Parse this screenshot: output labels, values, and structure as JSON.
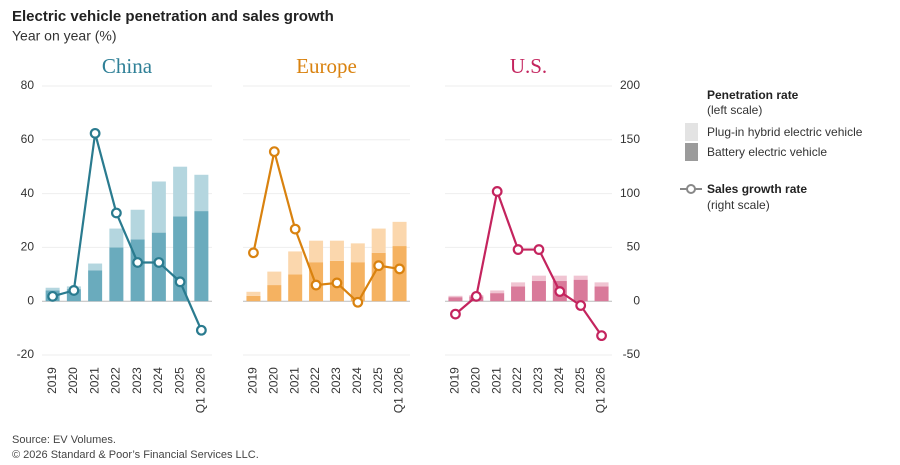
{
  "title": "Electric vehicle penetration and sales growth",
  "subtitle": "Year on year (%)",
  "legend": {
    "bar_title": "Penetration rate",
    "bar_note": "(left scale)",
    "line_note": "(right scale)"
  },
  "source": "Source: EV Volumes.",
  "copyright": "© 2026 Standard & Poor’s Financial Services LLC.",
  "chart_data": [
    {
      "type": "stacked-bar-line",
      "title": "China",
      "color": "#2f8097",
      "categories": [
        "2019",
        "2020",
        "2021",
        "2022",
        "2023",
        "2024",
        "2025",
        "Q1 2026"
      ],
      "ylim": [
        -20,
        80
      ],
      "yticks": [
        -20,
        0,
        20,
        40,
        60,
        80
      ],
      "y2lim": [
        -50,
        200
      ],
      "grid": true,
      "series": [
        {
          "name": "Plug-in hybrid electric vehicle",
          "color": "#b4d6df",
          "values": [
            1,
            1,
            2.5,
            7,
            11,
            19,
            18.5,
            13.5
          ]
        },
        {
          "name": "Battery electric vehicle",
          "color": "#6aabbd",
          "values": [
            4,
            4.5,
            11.5,
            20,
            23,
            25.5,
            31.5,
            33.5
          ]
        },
        {
          "name": "Sales growth rate",
          "color": "#2a7b8f",
          "axis": "y2",
          "values": [
            4.5,
            10,
            156,
            82,
            36,
            36,
            18,
            -27
          ]
        }
      ]
    },
    {
      "type": "stacked-bar-line",
      "title": "Europe",
      "color": "#d9820f",
      "categories": [
        "2019",
        "2020",
        "2021",
        "2022",
        "2023",
        "2024",
        "2025",
        "Q1 2026"
      ],
      "ylim": [
        -20,
        80
      ],
      "y2lim": [
        -50,
        200
      ],
      "grid": true,
      "series": [
        {
          "name": "Plug-in hybrid electric vehicle",
          "color": "#fbd7ad",
          "values": [
            1.5,
            5,
            8.5,
            8,
            7.5,
            7,
            9,
            9
          ]
        },
        {
          "name": "Battery electric vehicle",
          "color": "#f5b261",
          "values": [
            2,
            6,
            10,
            14.5,
            15,
            14.5,
            18,
            20.5
          ]
        },
        {
          "name": "Sales growth rate",
          "color": "#d9820f",
          "axis": "y2",
          "values": [
            45,
            139,
            67,
            15,
            17,
            -1,
            33,
            30
          ]
        }
      ]
    },
    {
      "type": "stacked-bar-line",
      "title": "U.S.",
      "color": "#c4245e",
      "categories": [
        "2019",
        "2020",
        "2021",
        "2022",
        "2023",
        "2024",
        "2025",
        "Q1 2026"
      ],
      "ylim": [
        -20,
        80
      ],
      "y2lim": [
        -50,
        200
      ],
      "y2ticks": [
        -50,
        0,
        50,
        100,
        150,
        200
      ],
      "grid": true,
      "series": [
        {
          "name": "Plug-in hybrid electric vehicle",
          "color": "#f0c4d2",
          "values": [
            0.5,
            0.5,
            1,
            1.5,
            2,
            2,
            1.5,
            1.5
          ]
        },
        {
          "name": "Battery electric vehicle",
          "color": "#d97a9a",
          "values": [
            1.5,
            1.8,
            3,
            5.5,
            7.5,
            7.5,
            8,
            5.5
          ]
        },
        {
          "name": "Sales growth rate",
          "color": "#c4245e",
          "axis": "y2",
          "values": [
            -12,
            4.5,
            102,
            48,
            48,
            9,
            -4,
            -32
          ]
        }
      ]
    }
  ]
}
